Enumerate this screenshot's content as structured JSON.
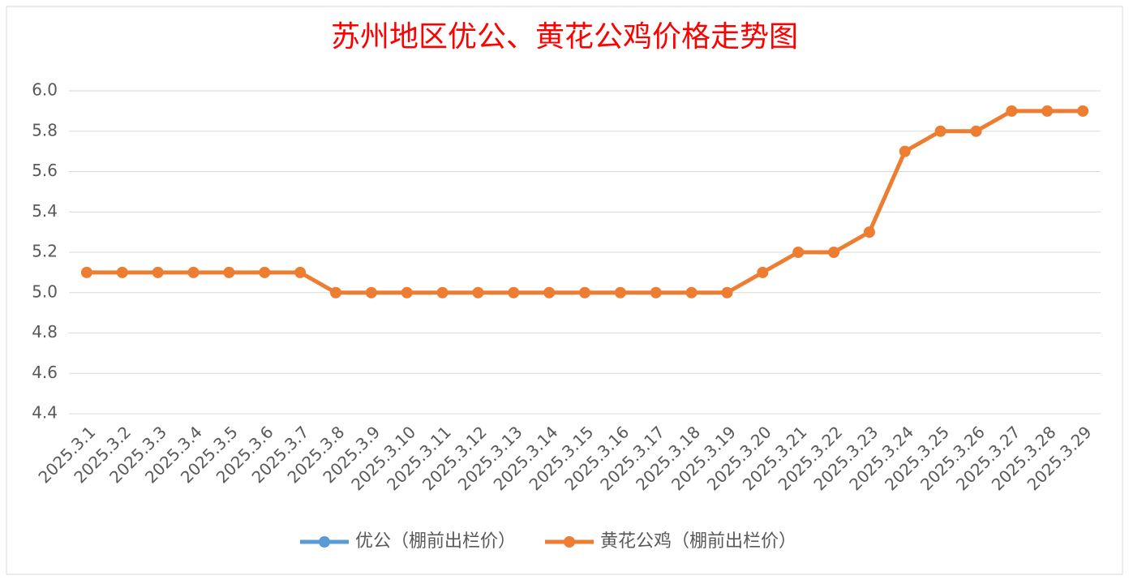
{
  "chart_data": {
    "type": "line",
    "title": "苏州地区优公、黄花公鸡价格走势图",
    "categories": [
      "2025.3.1",
      "2025.3.2",
      "2025.3.3",
      "2025.3.4",
      "2025.3.5",
      "2025.3.6",
      "2025.3.7",
      "2025.3.8",
      "2025.3.9",
      "2025.3.10",
      "2025.3.11",
      "2025.3.12",
      "2025.3.13",
      "2025.3.14",
      "2025.3.15",
      "2025.3.16",
      "2025.3.17",
      "2025.3.18",
      "2025.3.19",
      "2025.3.20",
      "2025.3.21",
      "2025.3.22",
      "2025.3.23",
      "2025.3.24",
      "2025.3.25",
      "2025.3.26",
      "2025.3.27",
      "2025.3.28",
      "2025.3.29"
    ],
    "series": [
      {
        "name": "优公（棚前出栏价）",
        "color": "#5b9bd5",
        "values": [
          null,
          null,
          null,
          null,
          null,
          null,
          null,
          null,
          null,
          null,
          null,
          null,
          null,
          null,
          null,
          null,
          null,
          null,
          null,
          null,
          null,
          null,
          null,
          null,
          null,
          null,
          null,
          null,
          null
        ]
      },
      {
        "name": "黄花公鸡（棚前出栏价）",
        "color": "#ed7d31",
        "values": [
          5.1,
          5.1,
          5.1,
          5.1,
          5.1,
          5.1,
          5.1,
          5.0,
          5.0,
          5.0,
          5.0,
          5.0,
          5.0,
          5.0,
          5.0,
          5.0,
          5.0,
          5.0,
          5.0,
          5.1,
          5.2,
          5.2,
          5.3,
          5.7,
          5.8,
          5.8,
          5.9,
          5.9,
          5.9
        ]
      }
    ],
    "ylim": [
      4.4,
      6.0
    ],
    "yticks": [
      {
        "value": 4.4,
        "label": "4.4"
      },
      4.6,
      4.8,
      {
        "value": 5,
        "label": "5.0"
      },
      5.2,
      5.4,
      5.6,
      5.8,
      {
        "value": 6,
        "label": "6.0"
      }
    ],
    "grid": true,
    "legend": "bottom"
  }
}
